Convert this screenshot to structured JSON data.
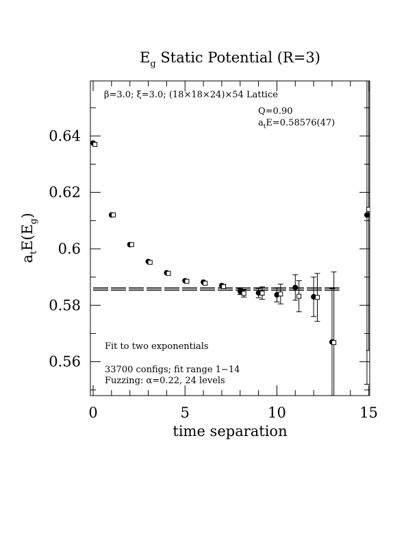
{
  "chart_data": {
    "type": "scatter",
    "title_main": "E",
    "title_sub": "g",
    "title_rest": " Static Potential (R=3)",
    "xlabel": "time separation",
    "ylabel_parts": [
      "a",
      "t",
      "E(E",
      "g",
      ")"
    ],
    "xlim": [
      -0.15,
      15.05
    ],
    "ylim": [
      0.548,
      0.6595
    ],
    "x_major_ticks": [
      0,
      5,
      10,
      15
    ],
    "x_minor_ticks": [
      1,
      2,
      3,
      4,
      6,
      7,
      8,
      9,
      11,
      12,
      13,
      14
    ],
    "y_major_ticks": [
      0.56,
      0.58,
      0.6,
      0.62,
      0.64
    ],
    "y_minor_ticks": [
      0.55,
      0.57,
      0.59,
      0.61,
      0.63,
      0.65
    ],
    "x_tick_labels": [
      "0",
      "5",
      "10",
      "15"
    ],
    "y_tick_labels": [
      "0.56",
      "0.58",
      "0.6",
      "0.62",
      "0.64"
    ],
    "annotations": {
      "lattice": "β=3.0; ξ=3.0; (18×18×24)×54 Lattice",
      "q_value": "Q=0.90",
      "energy_prefix": "a",
      "energy_sub": "t",
      "energy_rest": "E=0.58576(47)",
      "fit_desc": "Fit to two exponentials",
      "configs": "33700 configs; fit range 1−14",
      "fuzzing": "Fuzzing: α=0.22, 24 levels"
    },
    "fit": {
      "value": 0.58576,
      "error": 0.00047,
      "range": [
        0,
        13.4
      ]
    },
    "series": [
      {
        "marker": "filled-circle",
        "points": [
          {
            "x": 0,
            "y": 0.6375,
            "err": 0.0004
          },
          {
            "x": 1,
            "y": 0.612,
            "err": 0.0004
          },
          {
            "x": 2,
            "y": 0.6015,
            "err": 0.0004
          },
          {
            "x": 3,
            "y": 0.5955,
            "err": 0.0004
          },
          {
            "x": 4,
            "y": 0.5915,
            "err": 0.0004
          },
          {
            "x": 5,
            "y": 0.5887,
            "err": 0.0005
          },
          {
            "x": 6,
            "y": 0.5882,
            "err": 0.0005
          },
          {
            "x": 7,
            "y": 0.587,
            "err": 0.0007
          },
          {
            "x": 8,
            "y": 0.5849,
            "err": 0.0011
          },
          {
            "x": 9,
            "y": 0.5844,
            "err": 0.0017
          },
          {
            "x": 10,
            "y": 0.5837,
            "err": 0.0025
          },
          {
            "x": 11,
            "y": 0.5863,
            "err": 0.0045
          },
          {
            "x": 12,
            "y": 0.583,
            "err": 0.007
          },
          {
            "x": 13,
            "y": 0.567,
            "err": 0.019
          },
          {
            "x": 14.9,
            "y": 0.612,
            "err": 0.06
          }
        ]
      },
      {
        "marker": "open-square",
        "points": [
          {
            "x": 0.1,
            "y": 0.637,
            "err": 0.0004
          },
          {
            "x": 1.1,
            "y": 0.612,
            "err": 0.0004
          },
          {
            "x": 2.1,
            "y": 0.6015,
            "err": 0.0004
          },
          {
            "x": 3.1,
            "y": 0.5952,
            "err": 0.0004
          },
          {
            "x": 4.1,
            "y": 0.5913,
            "err": 0.0004
          },
          {
            "x": 5.1,
            "y": 0.5885,
            "err": 0.0005
          },
          {
            "x": 6.1,
            "y": 0.5878,
            "err": 0.0006
          },
          {
            "x": 7.1,
            "y": 0.5866,
            "err": 0.0008
          },
          {
            "x": 8.2,
            "y": 0.5842,
            "err": 0.0013
          },
          {
            "x": 9.2,
            "y": 0.5843,
            "err": 0.0022
          },
          {
            "x": 10.2,
            "y": 0.584,
            "err": 0.0035
          },
          {
            "x": 11.2,
            "y": 0.5832,
            "err": 0.0055
          },
          {
            "x": 12.2,
            "y": 0.5828,
            "err": 0.0085
          },
          {
            "x": 13.1,
            "y": 0.5668,
            "err": 0.025
          },
          {
            "x": 15.0,
            "y": 0.614,
            "err": 0.05
          }
        ]
      }
    ],
    "grid": false,
    "legend": "none"
  }
}
